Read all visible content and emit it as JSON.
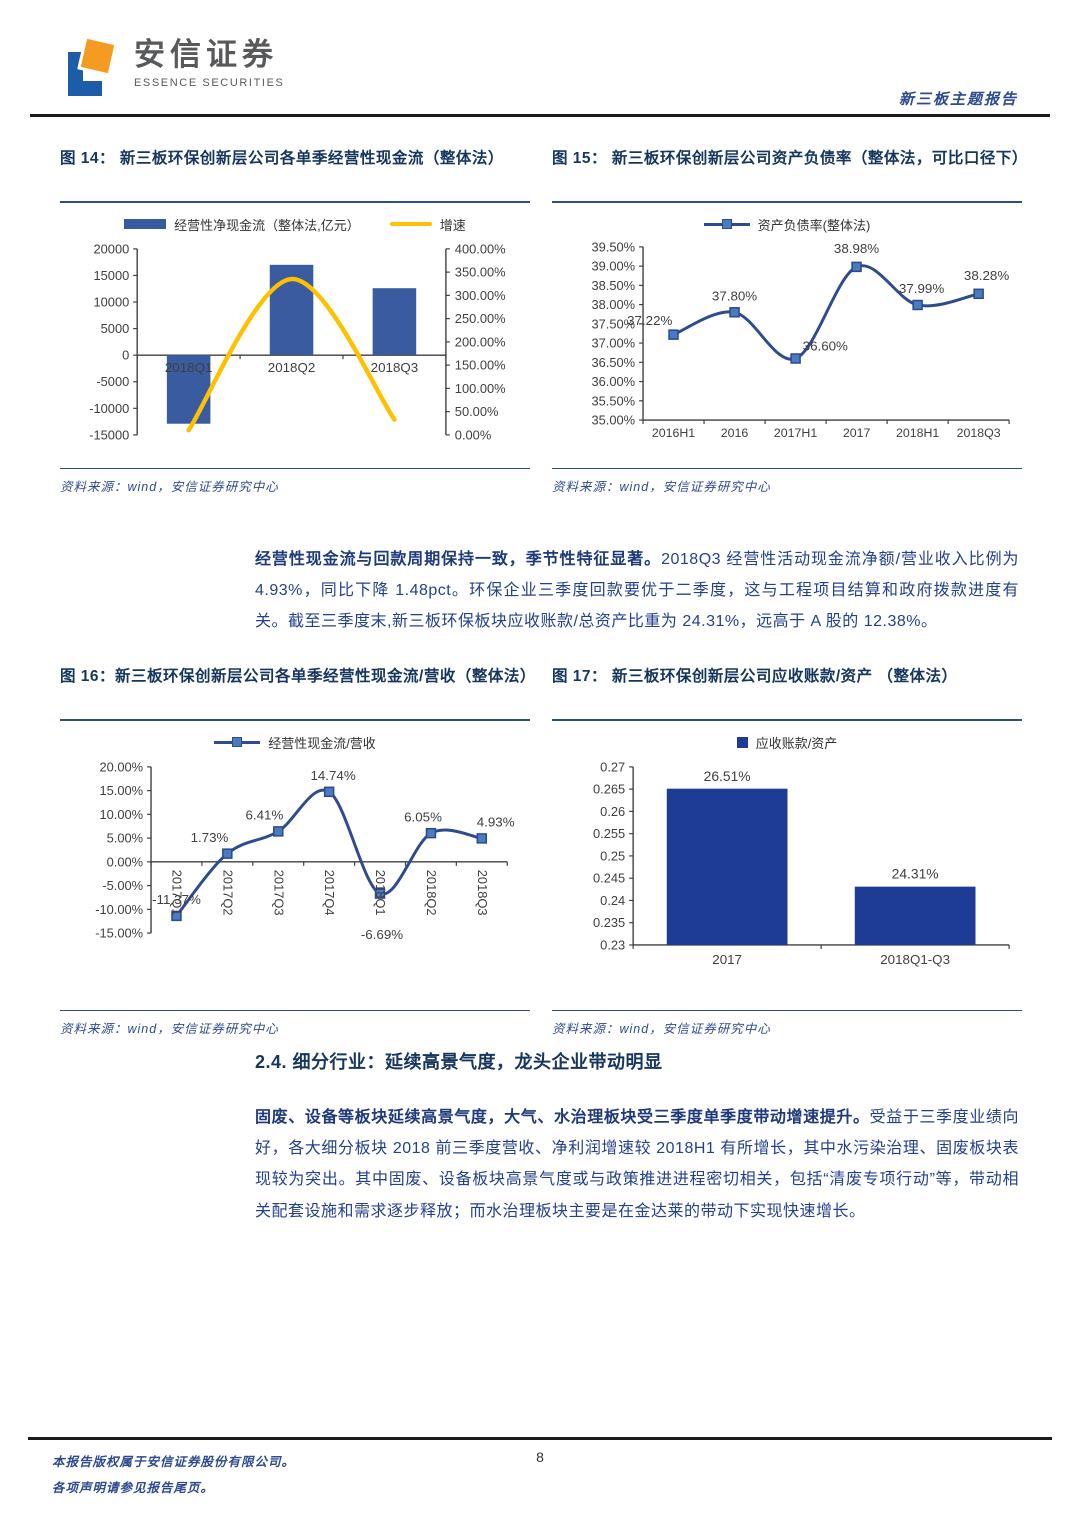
{
  "header": {
    "brand_cn": "安信证券",
    "brand_en": "ESSENCE SECURITIES",
    "report_tag": "新三板主题报告"
  },
  "colors": {
    "heading_navy": "#17365d",
    "body_blue": "#24418c",
    "rule_blue": "#2f4b8f",
    "bar_blue": "#3a5ba0",
    "bar_navy": "#1e3c96",
    "line_navy": "#2f4b8f",
    "marker_blue": "#4c7cc0",
    "growth_yellow": "#ffc000",
    "logo_orange": "#f59b22",
    "logo_blue": "#1c5ca8"
  },
  "paragraph1": {
    "runs": [
      {
        "bold": true,
        "text": "经营性现金流与回款周期保持一致，季节性特征显著。"
      },
      {
        "bold": false,
        "text": "2018Q3 经营性活动现金流净额/营业收入比例为 4.93%，同比下降 1.48pct。环保企业三季度回款要优于二季度，这与工程项目结算和政府拨款进度有关。截至三季度末,新三板环保板块应收账款/总资产比重为 24.31%，远高于 A 股的 12.38%。"
      }
    ]
  },
  "section": {
    "heading": "2.4. 细分行业：延续高景气度，龙头企业带动明显",
    "runs": [
      {
        "bold": true,
        "text": "固废、设备等板块延续高景气度，大气、水治理板块受三季度单季度带动增速提升。"
      },
      {
        "bold": false,
        "text": "受益于三季度业绩向好，各大细分板块 2018 前三季度营收、净利润增速较 2018H1 有所增长，其中水污染治理、固废板块表现较为突出。其中固废、设备板块高景气度或与政策推进进程密切相关，包括“清废专项行动”等，带动相关配套设施和需求逐步释放；而水治理板块主要是在金达莱的带动下实现快速增长。"
      }
    ]
  },
  "footer": {
    "line1": "本报告版权属于安信证券股份有限公司。",
    "line2": "各项声明请参见报告尾页。",
    "page": "8"
  },
  "chart_data": [
    {
      "id": "fig14",
      "type": "combo",
      "title": "图 14： 新三板环保创新层公司各单季经营性现金流（整体法）",
      "source": "资料来源：wind，安信证券研究中心",
      "categories": [
        "2018Q1",
        "2018Q2",
        "2018Q3"
      ],
      "series": [
        {
          "name": "经营性净现金流（整体法,亿元）",
          "type": "bar",
          "axis": "left",
          "values": [
            -12900,
            17000,
            12600
          ],
          "color": "#3a5ba0"
        },
        {
          "name": "增速",
          "type": "line",
          "axis": "right",
          "values": [
            10,
            335,
            33
          ],
          "color": "#ffc000"
        }
      ],
      "left_axis": {
        "min": -15000,
        "max": 20000,
        "step": 5000,
        "format": "plain"
      },
      "right_axis": {
        "min": 0,
        "max": 400,
        "step": 50,
        "format": "percent2"
      },
      "legend_position": "top",
      "grid": false
    },
    {
      "id": "fig15",
      "type": "line",
      "title": "图 15： 新三板环保创新层公司资产负债率（整体法，可比口径下）",
      "source": "资料来源：wind，安信证券研究中心",
      "legend": "资产负债率(整体法)",
      "categories": [
        "2016H1",
        "2016",
        "2017H1",
        "2017",
        "2018H1",
        "2018Q3"
      ],
      "values": [
        37.22,
        37.8,
        36.6,
        38.98,
        37.99,
        38.28
      ],
      "point_labels": [
        "37.22%",
        "37.80%",
        "36.60%",
        "38.98%",
        "37.99%",
        "38.28%"
      ],
      "y_axis": {
        "min": 35.0,
        "max": 39.5,
        "step": 0.5,
        "format": "percent2"
      },
      "line_color": "#2f4b8f",
      "marker_color": "#4c7cc0",
      "legend_position": "top",
      "grid": false
    },
    {
      "id": "fig16",
      "type": "line",
      "title": "图 16：新三板环保创新层公司各单季经营性现金流/营收（整体法）",
      "source": "资料来源：wind，安信证券研究中心",
      "legend": "经营性现金流/营收",
      "categories": [
        "2017Q1",
        "2017Q2",
        "2017Q3",
        "2017Q4",
        "2018Q1",
        "2018Q2",
        "2018Q3"
      ],
      "values": [
        -11.37,
        1.73,
        6.41,
        14.74,
        -6.69,
        6.05,
        4.93
      ],
      "point_labels": [
        "-11.37%",
        "1.73%",
        "6.41%",
        "14.74%",
        "-6.69%",
        "6.05%",
        "4.93%"
      ],
      "y_axis": {
        "min": -15,
        "max": 20,
        "step": 5,
        "format": "percent2"
      },
      "x_labels_rotated": true,
      "line_color": "#2f4b8f",
      "marker_color": "#4c7cc0",
      "legend_position": "top",
      "grid": false
    },
    {
      "id": "fig17",
      "type": "bar",
      "title": "图 17： 新三板环保创新层公司应收账款/资产 （整体法）",
      "source": "资料来源：wind，安信证券研究中心",
      "legend": "应收账款/资产",
      "categories": [
        "2017",
        "2018Q1-Q3"
      ],
      "values": [
        0.2651,
        0.2431
      ],
      "point_labels": [
        "26.51%",
        "24.31%"
      ],
      "y_axis": {
        "min": 0.23,
        "max": 0.27,
        "step": 0.005,
        "format": "num3"
      },
      "bar_color": "#1e3c96",
      "legend_position": "top",
      "grid": false
    }
  ]
}
